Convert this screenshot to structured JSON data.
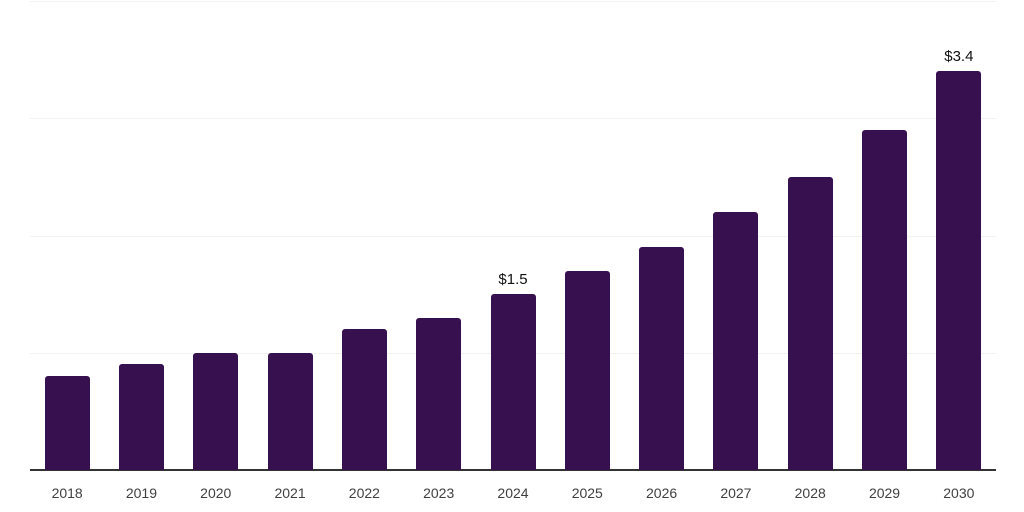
{
  "chart_data": {
    "type": "bar",
    "title": "",
    "xlabel": "",
    "ylabel": "",
    "categories": [
      "2018",
      "2019",
      "2020",
      "2021",
      "2022",
      "2023",
      "2024",
      "2025",
      "2026",
      "2027",
      "2028",
      "2029",
      "2030"
    ],
    "values": [
      0.8,
      0.9,
      1.0,
      1.0,
      1.2,
      1.3,
      1.5,
      1.7,
      1.9,
      2.2,
      2.5,
      2.9,
      3.4
    ],
    "data_labels": {
      "2024": "$1.5",
      "2030": "$3.4"
    },
    "ylim": [
      0,
      4
    ],
    "gridline_values": [
      1,
      2,
      3,
      4
    ],
    "grid": "horizontal",
    "legend": "none",
    "colors": {
      "bar": "#36104F",
      "axis_line": "#333333",
      "gridline": "#F2F2F2",
      "tick_label": "#404040",
      "data_label": "#111111",
      "background": "#FFFFFF"
    }
  }
}
